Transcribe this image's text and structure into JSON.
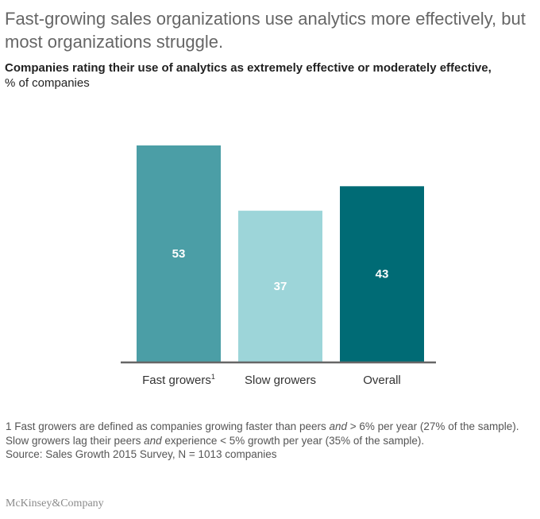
{
  "title": "Fast-growing sales organizations use analytics more effectively, but most organizations struggle.",
  "subtitle_line1": "Companies rating their use of analytics as extremely effective or moderately effective,",
  "subtitle_line2": "% of companies",
  "chart_data": {
    "type": "bar",
    "categories": [
      "Fast growers",
      "Slow growers",
      "Overall"
    ],
    "category_superscripts": [
      "1",
      "",
      ""
    ],
    "values": [
      53,
      37,
      43
    ],
    "colors": [
      "#4b9ea6",
      "#9dd5d9",
      "#006b75"
    ],
    "label_colors": [
      "#ffffff",
      "#ffffff",
      "#ffffff"
    ],
    "ylim": [
      0,
      53
    ],
    "grid": false,
    "axis_color": "#666666"
  },
  "footnote": {
    "part1": "1 Fast growers are defined as companies growing faster than peers ",
    "em1": "and",
    "part2": " > 6% per year (27% of the sample). Slow growers lag their peers ",
    "em2": "and",
    "part3": " experience < 5% growth per year (35% of the sample)."
  },
  "source": "Source: Sales Growth 2015 Survey, N = 1013 companies",
  "logo": "McKinsey&Company"
}
